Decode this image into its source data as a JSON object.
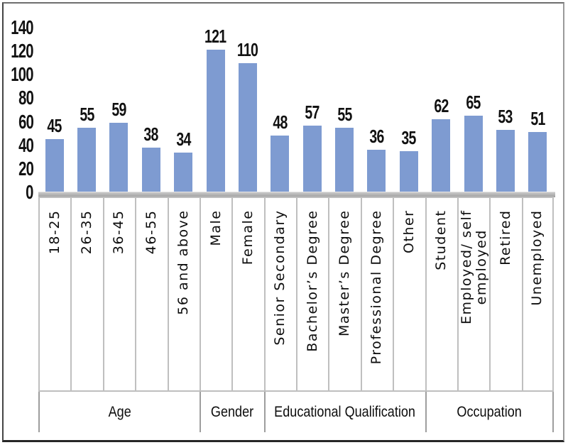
{
  "chart_data": {
    "type": "bar",
    "title": "",
    "ylim": [
      0,
      140
    ],
    "yticks": [
      0,
      20,
      40,
      60,
      80,
      100,
      120,
      140
    ],
    "grid": "off",
    "legend": "none",
    "bar_color": "#7E9BD1",
    "value_labels": "above bars",
    "groups": [
      {
        "label": "Age",
        "categories": [
          "18-25",
          "26-35",
          "36-45",
          "46-55",
          "56 and above"
        ],
        "values": [
          45,
          55,
          59,
          38,
          34
        ]
      },
      {
        "label": "Gender",
        "categories": [
          "Male",
          "Female"
        ],
        "values": [
          121,
          110
        ]
      },
      {
        "label": "Educational Qualification",
        "categories": [
          "Senior Secondary",
          "Bachelor’s Degree",
          "Master’s Degree",
          "Professional Degree",
          "Other"
        ],
        "values": [
          48,
          57,
          55,
          36,
          35
        ]
      },
      {
        "label": "Occupation",
        "categories": [
          "Student",
          "Employed/ self\nemployed",
          "Retired",
          "Unemployed"
        ],
        "values": [
          62,
          65,
          53,
          51
        ]
      }
    ]
  }
}
